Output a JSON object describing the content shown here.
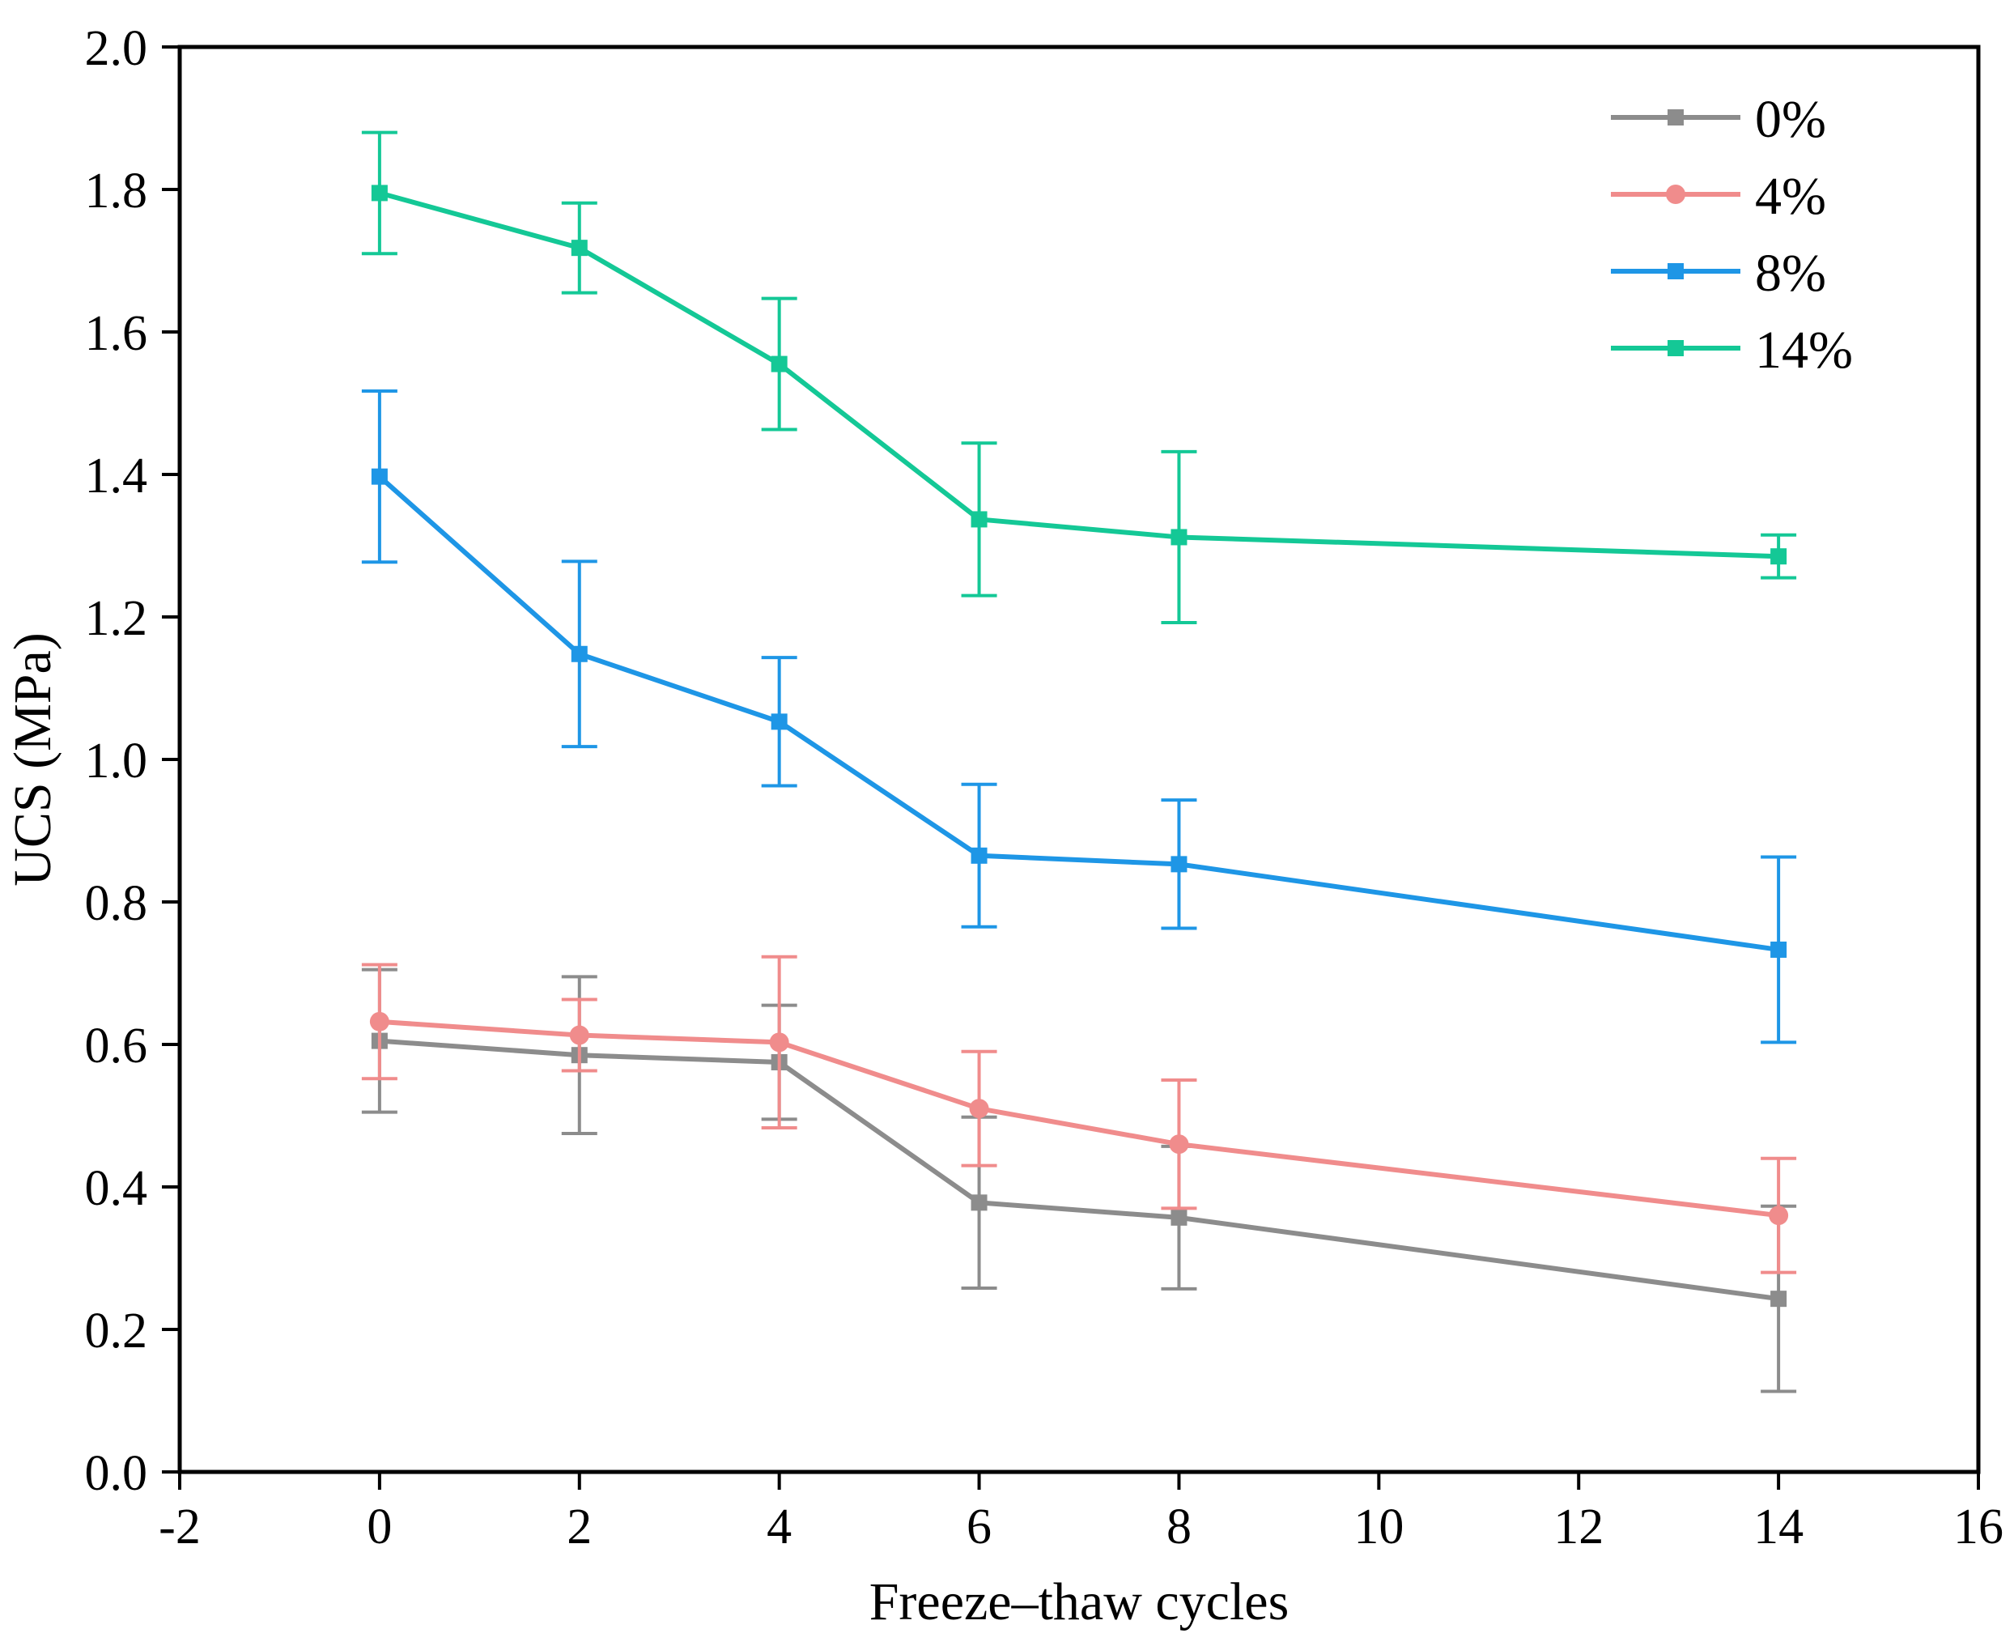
{
  "chart_data": {
    "type": "line",
    "title": "",
    "xlabel": "Freeze–thaw cycles",
    "ylabel": "UCS (MPa)",
    "xlim": [
      -2,
      16
    ],
    "ylim": [
      0.0,
      2.0
    ],
    "xticks": [
      -2,
      0,
      2,
      4,
      6,
      8,
      10,
      12,
      14,
      16
    ],
    "yticks": [
      0.0,
      0.2,
      0.4,
      0.6,
      0.8,
      1.0,
      1.2,
      1.4,
      1.6,
      1.8,
      2.0
    ],
    "xtick_labels": [
      "-2",
      "0",
      "2",
      "4",
      "6",
      "8",
      "10",
      "12",
      "14",
      "16"
    ],
    "ytick_labels": [
      "0.0",
      "0.2",
      "0.4",
      "0.6",
      "0.8",
      "1.0",
      "1.2",
      "1.4",
      "1.6",
      "1.8",
      "2.0"
    ],
    "x": [
      0,
      2,
      4,
      6,
      8,
      14
    ],
    "legend_position": "top-right",
    "grid": false,
    "series": [
      {
        "name": "0%",
        "color": "#8c8c8c",
        "marker": "square",
        "values": [
          0.605,
          0.585,
          0.575,
          0.378,
          0.357,
          0.243
        ],
        "errors": [
          0.1,
          0.11,
          0.08,
          0.12,
          0.1,
          0.13
        ]
      },
      {
        "name": "4%",
        "color": "#f08c8c",
        "marker": "circle",
        "values": [
          0.632,
          0.613,
          0.603,
          0.51,
          0.46,
          0.36
        ],
        "errors": [
          0.08,
          0.05,
          0.12,
          0.08,
          0.09,
          0.08
        ]
      },
      {
        "name": "8%",
        "color": "#1e96e6",
        "marker": "square",
        "values": [
          1.397,
          1.148,
          1.053,
          0.865,
          0.853,
          0.733
        ],
        "errors": [
          0.12,
          0.13,
          0.09,
          0.1,
          0.09,
          0.13
        ]
      },
      {
        "name": "14%",
        "color": "#14c896",
        "marker": "square",
        "values": [
          1.795,
          1.718,
          1.555,
          1.337,
          1.312,
          1.285
        ],
        "errors": [
          0.085,
          0.063,
          0.092,
          0.107,
          0.12,
          0.03
        ]
      }
    ]
  }
}
